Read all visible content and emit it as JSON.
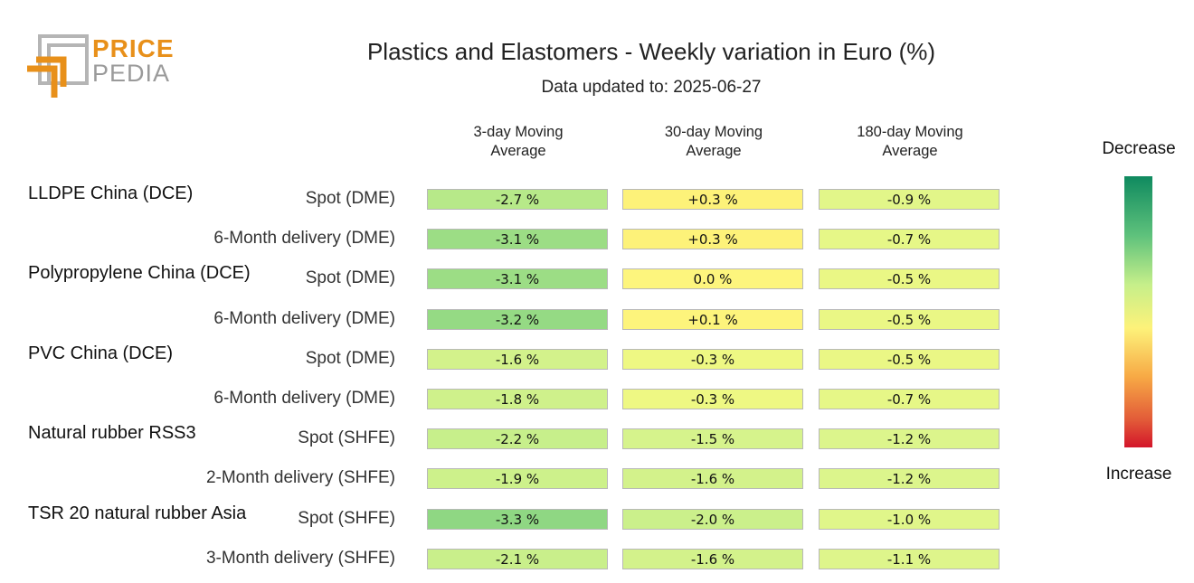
{
  "logo": {
    "line1": "PRICE",
    "line2": "PEDIA"
  },
  "title": "Plastics and Elastomers - Weekly variation in Euro (%)",
  "subtitle": "Data updated to: 2025-06-27",
  "legend": {
    "top": "Decrease",
    "bottom": "Increase"
  },
  "colors": {
    "decrease": "#0f8a5f",
    "neutral": "#fdf27a",
    "increase": "#d3152a",
    "logo_orange": "#e8901a",
    "logo_gray": "#9a9a9a"
  },
  "chart_data": {
    "type": "heatmap",
    "title": "Plastics and Elastomers - Weekly variation in Euro (%)",
    "columns": [
      "3-day Moving\nAverage",
      "30-day Moving\nAverage",
      "180-day Moving\nAverage"
    ],
    "groups": [
      {
        "name": "LLDPE China (DCE)",
        "rows": [
          {
            "label": "Spot (DME)",
            "values": [
              "-2.7 %",
              "+0.3 %",
              "-0.9 %"
            ],
            "numbers": [
              -2.7,
              0.3,
              -0.9
            ]
          },
          {
            "label": "6-Month delivery (DME)",
            "values": [
              "-3.1 %",
              "+0.3 %",
              "-0.7 %"
            ],
            "numbers": [
              -3.1,
              0.3,
              -0.7
            ]
          }
        ]
      },
      {
        "name": "Polypropylene China (DCE)",
        "rows": [
          {
            "label": "Spot (DME)",
            "values": [
              "-3.1 %",
              "0.0 %",
              "-0.5 %"
            ],
            "numbers": [
              -3.1,
              0.0,
              -0.5
            ]
          },
          {
            "label": "6-Month delivery (DME)",
            "values": [
              "-3.2 %",
              "+0.1 %",
              "-0.5 %"
            ],
            "numbers": [
              -3.2,
              0.1,
              -0.5
            ]
          }
        ]
      },
      {
        "name": "PVC China (DCE)",
        "rows": [
          {
            "label": "Spot (DME)",
            "values": [
              "-1.6 %",
              "-0.3 %",
              "-0.5 %"
            ],
            "numbers": [
              -1.6,
              -0.3,
              -0.5
            ]
          },
          {
            "label": "6-Month delivery (DME)",
            "values": [
              "-1.8 %",
              "-0.3 %",
              "-0.7 %"
            ],
            "numbers": [
              -1.8,
              -0.3,
              -0.7
            ]
          }
        ]
      },
      {
        "name": "Natural rubber RSS3",
        "rows": [
          {
            "label": "Spot (SHFE)",
            "values": [
              "-2.2 %",
              "-1.5 %",
              "-1.2 %"
            ],
            "numbers": [
              -2.2,
              -1.5,
              -1.2
            ]
          },
          {
            "label": "2-Month delivery (SHFE)",
            "values": [
              "-1.9 %",
              "-1.6 %",
              "-1.2 %"
            ],
            "numbers": [
              -1.9,
              -1.6,
              -1.2
            ]
          }
        ]
      },
      {
        "name": "TSR 20 natural rubber Asia",
        "rows": [
          {
            "label": "Spot (SHFE)",
            "values": [
              "-3.3 %",
              "-2.0 %",
              "-1.0 %"
            ],
            "numbers": [
              -3.3,
              -2.0,
              -1.0
            ]
          },
          {
            "label": "3-Month delivery (SHFE)",
            "values": [
              "-2.1 %",
              "-1.6 %",
              "-1.1 %"
            ],
            "numbers": [
              -2.1,
              -1.6,
              -1.1
            ]
          }
        ]
      }
    ]
  }
}
